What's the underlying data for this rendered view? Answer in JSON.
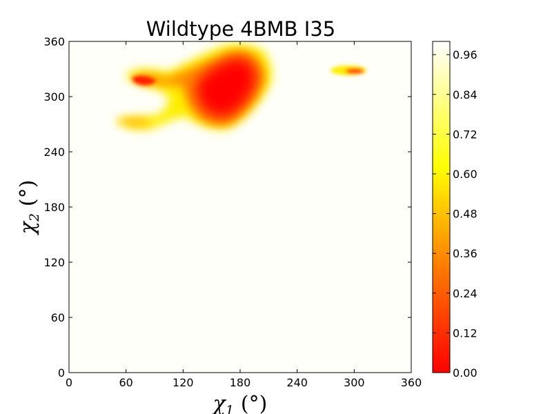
{
  "chart_data": {
    "type": "heatmap",
    "title": "Wildtype 4BMB I35",
    "xlabel": "χ1 (°)",
    "ylabel": "χ2 (°)",
    "xlabel_parts": {
      "base": "χ",
      "sub": "1",
      "unit": "(°)"
    },
    "ylabel_parts": {
      "base": "χ",
      "sub": "2",
      "unit": "(°)"
    },
    "xlim": [
      0,
      360
    ],
    "ylim": [
      0,
      360
    ],
    "xticks": [
      0,
      60,
      120,
      180,
      240,
      300,
      360
    ],
    "yticks": [
      0,
      60,
      120,
      180,
      240,
      300,
      360
    ],
    "colorbar": {
      "range": [
        0,
        1
      ],
      "ticks": [
        "0.00",
        "0.12",
        "0.24",
        "0.36",
        "0.48",
        "0.60",
        "0.72",
        "0.84",
        "0.96"
      ],
      "tick_values": [
        0,
        0.12,
        0.24,
        0.36,
        0.48,
        0.6,
        0.72,
        0.84,
        0.96
      ],
      "colormap": [
        "#ff0000",
        "#ff8000",
        "#ffff00",
        "#ffffff"
      ]
    },
    "background_value": 1.0,
    "low_regions": [
      {
        "chi1": 170,
        "chi2": 305,
        "value": 0.0
      },
      {
        "chi1": 160,
        "chi2": 290,
        "value": 0.02
      },
      {
        "chi1": 185,
        "chi2": 325,
        "value": 0.05
      },
      {
        "chi1": 175,
        "chi2": 342,
        "value": 0.15
      },
      {
        "chi1": 200,
        "chi2": 315,
        "value": 0.25
      },
      {
        "chi1": 130,
        "chi2": 300,
        "value": 0.45
      },
      {
        "chi1": 110,
        "chi2": 300,
        "value": 0.55
      },
      {
        "chi1": 95,
        "chi2": 318,
        "value": 0.2
      },
      {
        "chi1": 75,
        "chi2": 322,
        "value": 0.1
      },
      {
        "chi1": 80,
        "chi2": 275,
        "value": 0.35
      },
      {
        "chi1": 60,
        "chi2": 277,
        "value": 0.3
      },
      {
        "chi1": 300,
        "chi2": 327,
        "value": 0.1
      },
      {
        "chi1": 288,
        "chi2": 328,
        "value": 0.55
      }
    ]
  }
}
